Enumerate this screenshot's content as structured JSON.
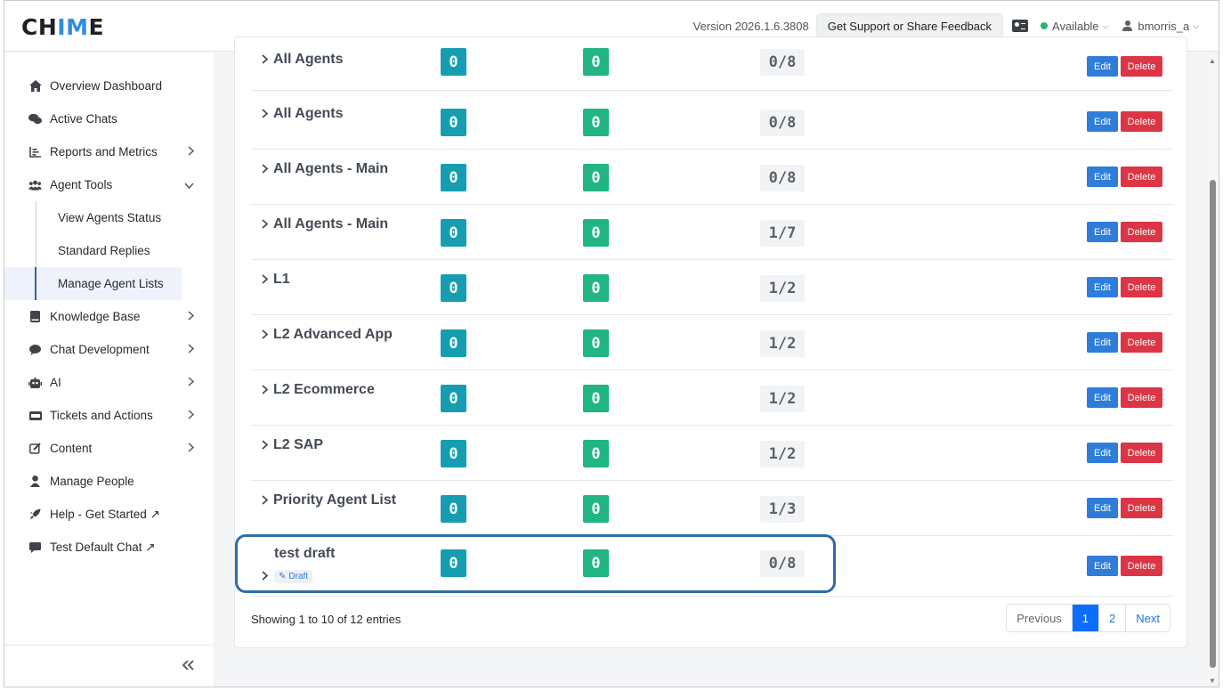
{
  "header": {
    "logo_left": "CH",
    "logo_accent": "IM",
    "logo_right": "E",
    "version": "Version 2026.1.6.3808",
    "support_button": "Get Support or Share Feedback",
    "status": "Available",
    "username": "bmorris_a",
    "status_color": "#22b573"
  },
  "sidebar": {
    "items": [
      {
        "label": "Overview Dashboard",
        "icon": "home-icon",
        "glyph": "⌂"
      },
      {
        "label": "Active Chats",
        "icon": "chat-bubbles-icon",
        "glyph": "💬"
      },
      {
        "label": "Reports and Metrics",
        "icon": "chart-icon",
        "glyph": "≡",
        "chevron": "›"
      },
      {
        "label": "Agent Tools",
        "icon": "users-icon",
        "glyph": "👥",
        "chevron": "⌄"
      }
    ],
    "agent_tools_sub": [
      {
        "label": "View Agents Status"
      },
      {
        "label": "Standard Replies"
      },
      {
        "label": "Manage Agent Lists",
        "active": true
      }
    ],
    "items_after": [
      {
        "label": "Knowledge Base",
        "icon": "book-icon",
        "glyph": "▮",
        "chevron": "›"
      },
      {
        "label": "Chat Development",
        "icon": "comment-icon",
        "glyph": "●",
        "chevron": "›"
      },
      {
        "label": "AI",
        "icon": "robot-icon",
        "glyph": "🤖",
        "chevron": "›"
      },
      {
        "label": "Tickets and Actions",
        "icon": "ticket-icon",
        "glyph": "▭",
        "chevron": "›"
      },
      {
        "label": "Content",
        "icon": "edit-icon",
        "glyph": "✎",
        "chevron": "›"
      },
      {
        "label": "Manage People",
        "icon": "person-icon",
        "glyph": "👤"
      },
      {
        "label": "Help - Get Started ↗",
        "icon": "rocket-icon",
        "glyph": "🚀"
      },
      {
        "label": "Test Default Chat ↗",
        "icon": "message-icon",
        "glyph": "▬"
      }
    ],
    "collapse_glyph": "«"
  },
  "table": {
    "rows": [
      {
        "name": "All Agents",
        "a": "0",
        "b": "0",
        "ratio": "0/8"
      },
      {
        "name": "All Agents",
        "a": "0",
        "b": "0",
        "ratio": "0/8"
      },
      {
        "name": "All Agents - Main",
        "a": "0",
        "b": "0",
        "ratio": "0/8"
      },
      {
        "name": "All Agents - Main",
        "a": "0",
        "b": "0",
        "ratio": "1/7"
      },
      {
        "name": "L1",
        "a": "0",
        "b": "0",
        "ratio": "1/2"
      },
      {
        "name": "L2 Advanced App",
        "a": "0",
        "b": "0",
        "ratio": "1/2"
      },
      {
        "name": "L2 Ecommerce",
        "a": "0",
        "b": "0",
        "ratio": "1/2"
      },
      {
        "name": "L2 SAP",
        "a": "0",
        "b": "0",
        "ratio": "1/2"
      },
      {
        "name": "Priority Agent List",
        "a": "0",
        "b": "0",
        "ratio": "1/3"
      }
    ],
    "draft_row": {
      "name": "test draft",
      "tag": "Draft",
      "a": "0",
      "b": "0",
      "ratio": "0/8"
    },
    "edit_label": "Edit",
    "delete_label": "Delete",
    "expand_glyph": "›"
  },
  "footer": {
    "showing": "Showing 1 to 10 of 12 entries",
    "pager": [
      "Previous",
      "1",
      "2",
      "Next"
    ],
    "current_page": "1"
  }
}
